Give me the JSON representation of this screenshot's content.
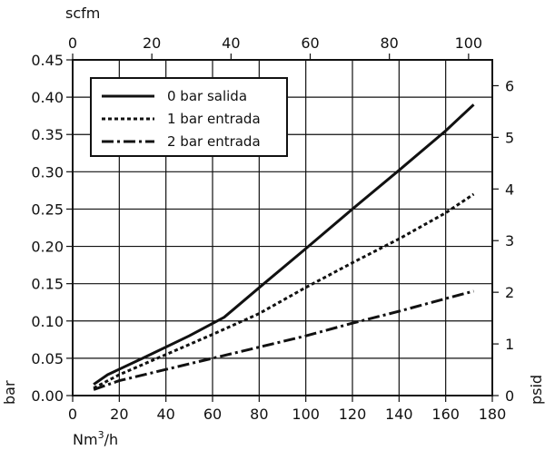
{
  "chart_data": {
    "type": "line",
    "x_bottom": {
      "label": "Nm³/h",
      "label_main": "Nm",
      "label_sup": "3",
      "label_tail": "/h",
      "range": [
        0,
        180
      ],
      "ticks": [
        0,
        20,
        40,
        60,
        80,
        100,
        120,
        140,
        160,
        180
      ]
    },
    "x_top": {
      "label": "scfm",
      "range": [
        0,
        106
      ],
      "ticks": [
        0,
        20,
        40,
        60,
        80,
        100
      ]
    },
    "y_left": {
      "label": "bar",
      "range": [
        0,
        0.45
      ],
      "ticks": [
        "0.00",
        "0.05",
        "0.10",
        "0.15",
        "0.20",
        "0.25",
        "0.30",
        "0.35",
        "0.40",
        "0.45"
      ]
    },
    "y_right": {
      "label": "psid",
      "range": [
        0,
        6.5
      ],
      "ticks": [
        0,
        1,
        2,
        3,
        4,
        5,
        6
      ]
    },
    "grid": true,
    "legend": "top-left",
    "series": [
      {
        "name": "0 bar salida",
        "dash": "solid",
        "x": [
          9,
          15,
          30,
          50,
          65,
          82,
          100,
          120,
          140,
          160,
          172
        ],
        "y": [
          0.015,
          0.028,
          0.05,
          0.08,
          0.105,
          0.15,
          0.197,
          0.25,
          0.302,
          0.355,
          0.39
        ]
      },
      {
        "name": "1 bar entrada",
        "dash": "dotted",
        "x": [
          9,
          20,
          40,
          60,
          80,
          100,
          120,
          140,
          160,
          172
        ],
        "y": [
          0.01,
          0.028,
          0.055,
          0.082,
          0.11,
          0.145,
          0.178,
          0.21,
          0.245,
          0.27
        ]
      },
      {
        "name": "2 bar entrada",
        "dash": "dashdot",
        "x": [
          9,
          20,
          40,
          60,
          80,
          100,
          120,
          140,
          160,
          172
        ],
        "y": [
          0.008,
          0.02,
          0.035,
          0.05,
          0.065,
          0.08,
          0.097,
          0.113,
          0.13,
          0.14
        ]
      }
    ]
  }
}
